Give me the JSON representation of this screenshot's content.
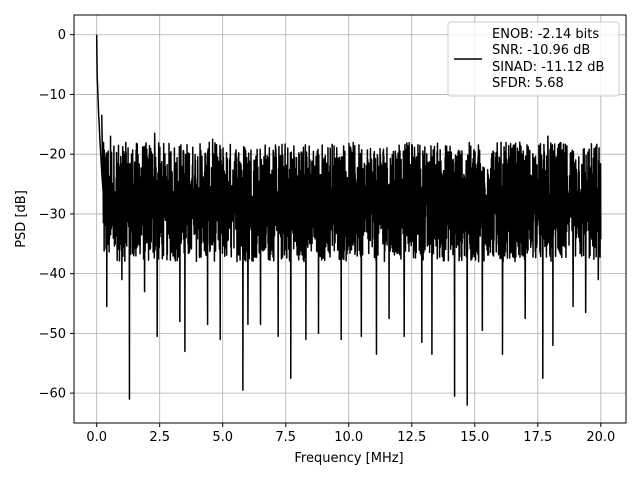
{
  "chart_data": {
    "type": "line",
    "xlabel": "Frequency [MHz]",
    "ylabel": "PSD [dB]",
    "xlim": [
      -0.9,
      21.0
    ],
    "ylim": [
      -65,
      3.3
    ],
    "xticks": [
      0.0,
      2.5,
      5.0,
      7.5,
      10.0,
      12.5,
      15.0,
      17.5,
      20.0
    ],
    "xtick_labels": [
      "0.0",
      "2.5",
      "5.0",
      "7.5",
      "10.0",
      "12.5",
      "15.0",
      "17.5",
      "20.0"
    ],
    "yticks": [
      0,
      -10,
      -20,
      -30,
      -40,
      -50,
      -60
    ],
    "ytick_labels": [
      "0",
      "−10",
      "−20",
      "−30",
      "−40",
      "−50",
      "−60"
    ],
    "grid": true,
    "legend_position": "top-right",
    "series": [
      {
        "color": "#000000",
        "legend_lines": [
          "ENOB: -2.14 bits",
          "SNR: -10.96 dB",
          "SINAD: -11.12 dB",
          "SFDR: 5.68"
        ],
        "description": "dense noise floor between about -40 and -18 dB across 0–20 MHz, peak at 0 dB near DC",
        "x_range": [
          0.0,
          20.0
        ],
        "noise_floor": {
          "min": -40,
          "max": -17,
          "center": -29
        },
        "dc_peak": [
          [
            0.0,
            0.0
          ],
          [
            0.02,
            -7.0
          ],
          [
            0.04,
            -9.0
          ],
          [
            0.06,
            -11.5
          ],
          [
            0.08,
            -13.5
          ],
          [
            0.1,
            -15.0
          ],
          [
            0.12,
            -17.0
          ],
          [
            0.16,
            -20.0
          ],
          [
            0.2,
            -23.0
          ],
          [
            0.25,
            -26.0
          ]
        ],
        "notable_dips": [
          [
            0.4,
            -45.5
          ],
          [
            1.0,
            -41.0
          ],
          [
            1.3,
            -61.0
          ],
          [
            1.9,
            -43.0
          ],
          [
            2.4,
            -50.5
          ],
          [
            3.3,
            -48.0
          ],
          [
            3.5,
            -53.0
          ],
          [
            4.4,
            -48.5
          ],
          [
            4.9,
            -51.0
          ],
          [
            5.8,
            -59.5
          ],
          [
            6.0,
            -48.5
          ],
          [
            6.5,
            -48.5
          ],
          [
            7.2,
            -50.5
          ],
          [
            7.7,
            -57.5
          ],
          [
            8.3,
            -51.0
          ],
          [
            8.8,
            -50.0
          ],
          [
            9.7,
            -51.0
          ],
          [
            10.5,
            -50.5
          ],
          [
            11.1,
            -53.5
          ],
          [
            11.6,
            -47.5
          ],
          [
            12.2,
            -50.5
          ],
          [
            12.9,
            -51.5
          ],
          [
            13.3,
            -53.5
          ],
          [
            14.2,
            -60.5
          ],
          [
            14.7,
            -62.0
          ],
          [
            15.3,
            -49.5
          ],
          [
            16.1,
            -53.5
          ],
          [
            17.0,
            -47.5
          ],
          [
            17.7,
            -57.5
          ],
          [
            18.1,
            -52.0
          ],
          [
            18.9,
            -45.5
          ],
          [
            19.4,
            -46.5
          ],
          [
            19.9,
            -41.0
          ]
        ],
        "notable_peaks": [
          [
            0.2,
            -13.5
          ],
          [
            0.55,
            -17.0
          ],
          [
            2.3,
            -16.5
          ],
          [
            4.6,
            -17.5
          ],
          [
            12.0,
            -18.5
          ],
          [
            17.9,
            -17.0
          ]
        ]
      }
    ]
  }
}
